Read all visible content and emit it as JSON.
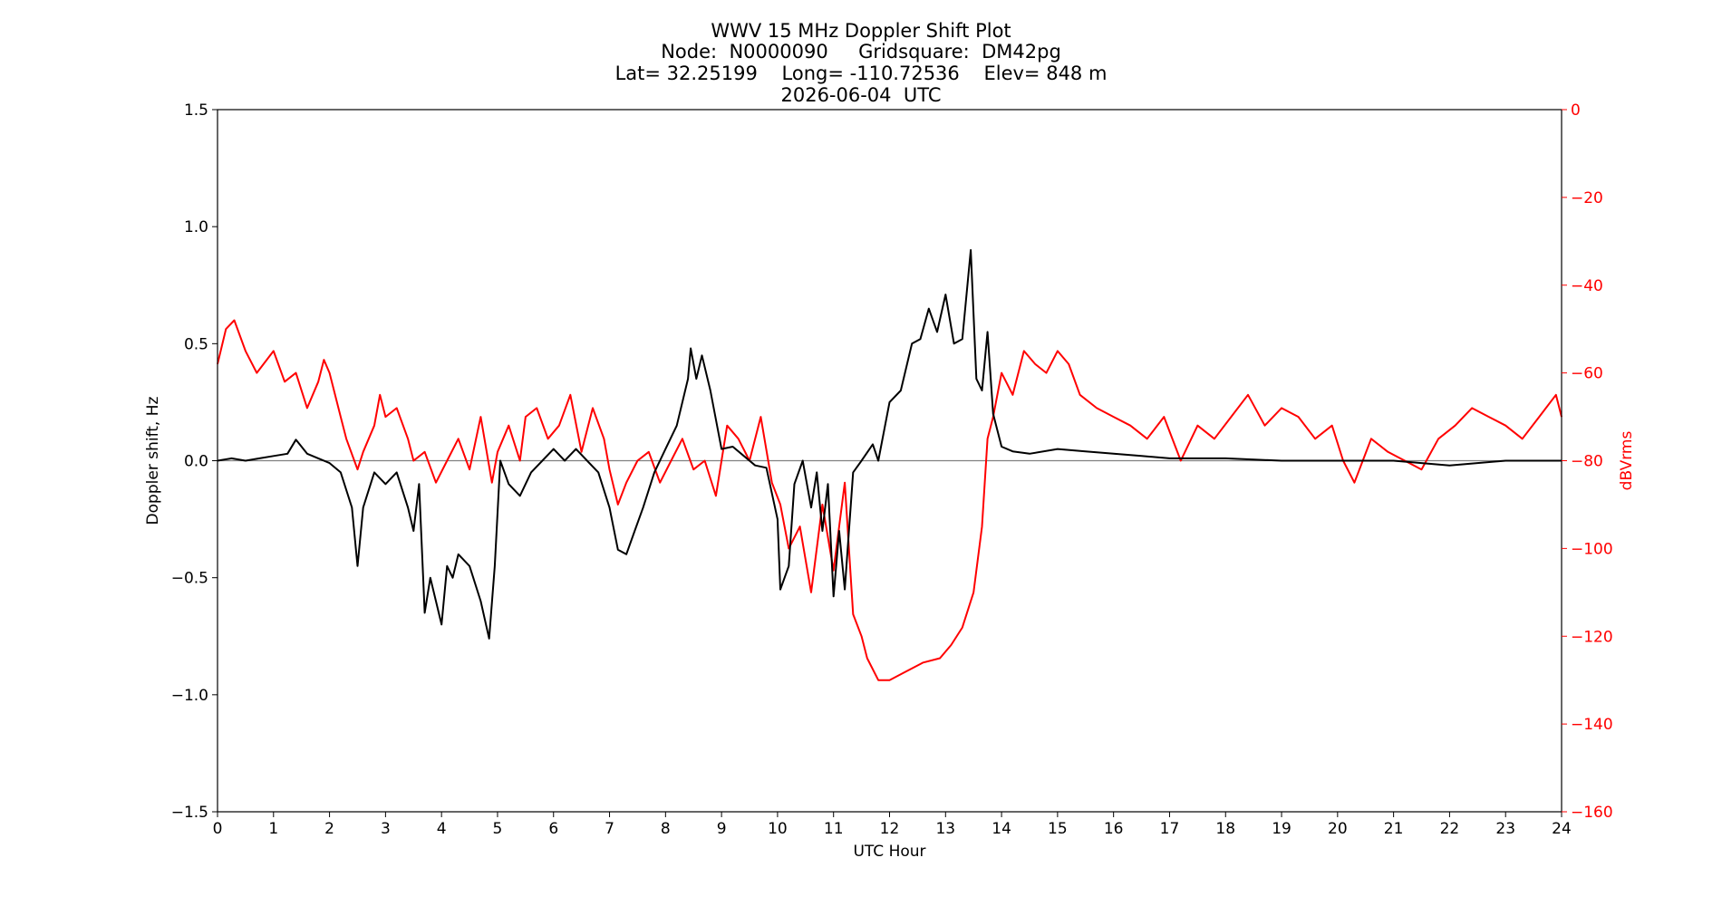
{
  "chart_data": {
    "type": "line",
    "title_lines": [
      "WWV 15 MHz Doppler Shift Plot",
      "Node:  N0000090     Gridsquare:  DM42pg",
      "Lat= 32.25199    Long= -110.72536    Elev= 848 m",
      "2026-06-04  UTC"
    ],
    "xlabel": "UTC Hour",
    "ylabel": "Doppler shift, Hz",
    "y2label": "dBVrms",
    "xlim": [
      0,
      24
    ],
    "ylim": [
      -1.5,
      1.5
    ],
    "y2lim": [
      -160,
      0
    ],
    "x_ticks": [
      "0",
      "1",
      "2",
      "3",
      "4",
      "5",
      "6",
      "7",
      "8",
      "9",
      "10",
      "11",
      "12",
      "13",
      "14",
      "15",
      "16",
      "17",
      "18",
      "19",
      "20",
      "21",
      "22",
      "23",
      "24"
    ],
    "y_ticks": [
      "1.5",
      "1.0",
      "0.5",
      "0.0",
      "−0.5",
      "−1.0",
      "−1.5"
    ],
    "y2_ticks": [
      "0",
      "−20",
      "−40",
      "−60",
      "−80",
      "−100",
      "−120",
      "−140",
      "−160"
    ],
    "zero_line": true,
    "colors": {
      "doppler": "#000000",
      "power": "#ff0000",
      "zero_line": "#808080"
    },
    "series": [
      {
        "axis": "left",
        "x": [
          0,
          0.25,
          0.5,
          0.75,
          1,
          1.25,
          1.4,
          1.6,
          1.8,
          2,
          2.2,
          2.4,
          2.5,
          2.6,
          2.8,
          3,
          3.2,
          3.4,
          3.5,
          3.6,
          3.7,
          3.8,
          3.9,
          4,
          4.1,
          4.2,
          4.3,
          4.5,
          4.7,
          4.85,
          4.95,
          5.05,
          5.2,
          5.4,
          5.6,
          5.8,
          6,
          6.2,
          6.4,
          6.6,
          6.8,
          7,
          7.15,
          7.3,
          7.45,
          7.6,
          7.8,
          8,
          8.2,
          8.4,
          8.45,
          8.55,
          8.65,
          8.8,
          9,
          9.2,
          9.4,
          9.6,
          9.8,
          10,
          10.05,
          10.2,
          10.3,
          10.45,
          10.6,
          10.7,
          10.8,
          10.9,
          11,
          11.1,
          11.2,
          11.35,
          11.5,
          11.7,
          11.8,
          12,
          12.2,
          12.4,
          12.55,
          12.7,
          12.85,
          13,
          13.15,
          13.3,
          13.45,
          13.55,
          13.65,
          13.75,
          13.85,
          14,
          14.2,
          14.5,
          15,
          15.5,
          16,
          16.5,
          17,
          18,
          19,
          20,
          21,
          22,
          23,
          24
        ],
        "y": [
          0.0,
          0.01,
          0.0,
          0.01,
          0.02,
          0.03,
          0.09,
          0.03,
          0.01,
          -0.01,
          -0.05,
          -0.2,
          -0.45,
          -0.2,
          -0.05,
          -0.1,
          -0.05,
          -0.2,
          -0.3,
          -0.1,
          -0.65,
          -0.5,
          -0.6,
          -0.7,
          -0.45,
          -0.5,
          -0.4,
          -0.45,
          -0.6,
          -0.76,
          -0.45,
          0.0,
          -0.1,
          -0.15,
          -0.05,
          0.0,
          0.05,
          0.0,
          0.05,
          0.0,
          -0.05,
          -0.2,
          -0.38,
          -0.4,
          -0.3,
          -0.2,
          -0.05,
          0.05,
          0.15,
          0.35,
          0.48,
          0.35,
          0.45,
          0.3,
          0.05,
          0.06,
          0.02,
          -0.02,
          -0.03,
          -0.25,
          -0.55,
          -0.45,
          -0.1,
          0.0,
          -0.2,
          -0.05,
          -0.3,
          -0.1,
          -0.58,
          -0.3,
          -0.55,
          -0.05,
          0.0,
          0.07,
          0.0,
          0.25,
          0.3,
          0.5,
          0.52,
          0.65,
          0.55,
          0.71,
          0.5,
          0.52,
          0.9,
          0.35,
          0.3,
          0.55,
          0.2,
          0.06,
          0.04,
          0.03,
          0.05,
          0.04,
          0.03,
          0.02,
          0.01,
          0.01,
          0.0,
          0.0,
          0.0,
          -0.02,
          0.0,
          0.0
        ]
      },
      {
        "axis": "right",
        "x": [
          0,
          0.15,
          0.3,
          0.5,
          0.7,
          1,
          1.2,
          1.4,
          1.6,
          1.8,
          1.9,
          2,
          2.2,
          2.3,
          2.5,
          2.6,
          2.8,
          2.9,
          3,
          3.2,
          3.4,
          3.5,
          3.7,
          3.9,
          4.1,
          4.3,
          4.5,
          4.7,
          4.9,
          5,
          5.2,
          5.4,
          5.5,
          5.7,
          5.9,
          6.1,
          6.3,
          6.5,
          6.7,
          6.9,
          7,
          7.15,
          7.3,
          7.5,
          7.7,
          7.9,
          8.1,
          8.3,
          8.5,
          8.7,
          8.9,
          9.1,
          9.3,
          9.5,
          9.7,
          9.9,
          10.05,
          10.2,
          10.4,
          10.6,
          10.8,
          11,
          11.2,
          11.35,
          11.5,
          11.6,
          11.8,
          12,
          12.3,
          12.6,
          12.9,
          13.1,
          13.3,
          13.5,
          13.65,
          13.75,
          13.85,
          14,
          14.2,
          14.4,
          14.6,
          14.8,
          15,
          15.2,
          15.4,
          15.7,
          16,
          16.3,
          16.6,
          16.9,
          17.2,
          17.5,
          17.8,
          18.1,
          18.4,
          18.7,
          19,
          19.3,
          19.6,
          19.9,
          20.1,
          20.3,
          20.6,
          20.9,
          21.2,
          21.5,
          21.8,
          22.1,
          22.4,
          22.7,
          23,
          23.3,
          23.6,
          23.9,
          24
        ],
        "y": [
          -58,
          -50,
          -48,
          -55,
          -60,
          -55,
          -62,
          -60,
          -68,
          -62,
          -57,
          -60,
          -70,
          -75,
          -82,
          -78,
          -72,
          -65,
          -70,
          -68,
          -75,
          -80,
          -78,
          -85,
          -80,
          -75,
          -82,
          -70,
          -85,
          -78,
          -72,
          -80,
          -70,
          -68,
          -75,
          -72,
          -65,
          -78,
          -68,
          -75,
          -82,
          -90,
          -85,
          -80,
          -78,
          -85,
          -80,
          -75,
          -82,
          -80,
          -88,
          -72,
          -75,
          -80,
          -70,
          -85,
          -90,
          -100,
          -95,
          -110,
          -90,
          -105,
          -85,
          -115,
          -120,
          -125,
          -130,
          -130,
          -128,
          -126,
          -125,
          -122,
          -118,
          -110,
          -95,
          -75,
          -70,
          -60,
          -65,
          -55,
          -58,
          -60,
          -55,
          -58,
          -65,
          -68,
          -70,
          -72,
          -75,
          -70,
          -80,
          -72,
          -75,
          -70,
          -65,
          -72,
          -68,
          -70,
          -75,
          -72,
          -80,
          -85,
          -75,
          -78,
          -80,
          -82,
          -75,
          -72,
          -68,
          -70,
          -72,
          -75,
          -70,
          -65,
          -70
        ]
      }
    ]
  }
}
